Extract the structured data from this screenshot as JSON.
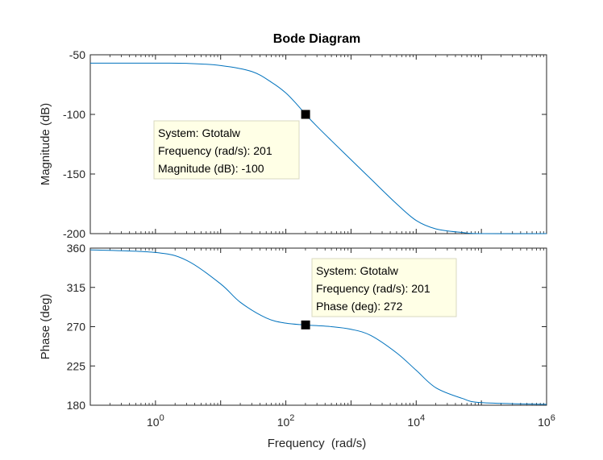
{
  "chart_data": {
    "type": "line",
    "title": "Bode Diagram",
    "xlabel": "Frequency  (rad/s)",
    "x_scale": "log",
    "xlim": [
      0.1,
      1000000
    ],
    "x_ticks": [
      {
        "value": 1,
        "base": "10",
        "exp": "0"
      },
      {
        "value": 100,
        "base": "10",
        "exp": "2"
      },
      {
        "value": 10000,
        "base": "10",
        "exp": "4"
      },
      {
        "value": 1000000,
        "base": "10",
        "exp": "6"
      }
    ],
    "line_color": "#0072bd",
    "panels": [
      {
        "id": "magnitude",
        "ylabel": "Magnitude (dB)",
        "ylim": [
          -200,
          -50
        ],
        "yticks": [
          -50,
          -100,
          -150,
          -200
        ],
        "series": [
          {
            "x": [
              0.1,
              1,
              3,
              10,
              30,
              60,
              100,
              150,
              201,
              300,
              500,
              1000,
              2000,
              5000,
              10000,
              20000,
              50000,
              100000,
              1000000
            ],
            "y": [
              -57,
              -57,
              -57.2,
              -59,
              -64,
              -73,
              -82,
              -92,
              -100,
              -110,
              -122,
              -138,
              -154,
              -175,
              -189,
              -196,
              -199,
              -200,
              -200
            ]
          }
        ],
        "datatip": {
          "x": 201,
          "y": -100,
          "lines": [
            "System: Gtotalw",
            "Frequency (rad/s): 201",
            "Magnitude (dB): -100"
          ]
        }
      },
      {
        "id": "phase",
        "ylabel": "Phase (deg)",
        "ylim": [
          180,
          360
        ],
        "yticks": [
          360,
          315,
          270,
          225,
          180
        ],
        "series": [
          {
            "x": [
              0.1,
              1,
              3,
              10,
              20,
              50,
              100,
              201,
              500,
              1000,
              2000,
              5000,
              10000,
              20000,
              50000,
              100000,
              1000000
            ],
            "y": [
              358,
              355,
              346,
              319,
              298,
              280,
              274,
              272,
              270,
              267,
              260,
              240,
              220,
              200,
              188,
              183,
              181
            ]
          }
        ],
        "datatip": {
          "x": 201,
          "y": 272,
          "lines": [
            "System: Gtotalw",
            "Frequency (rad/s): 201",
            "Phase (deg): 272"
          ]
        }
      }
    ],
    "grid": false
  }
}
